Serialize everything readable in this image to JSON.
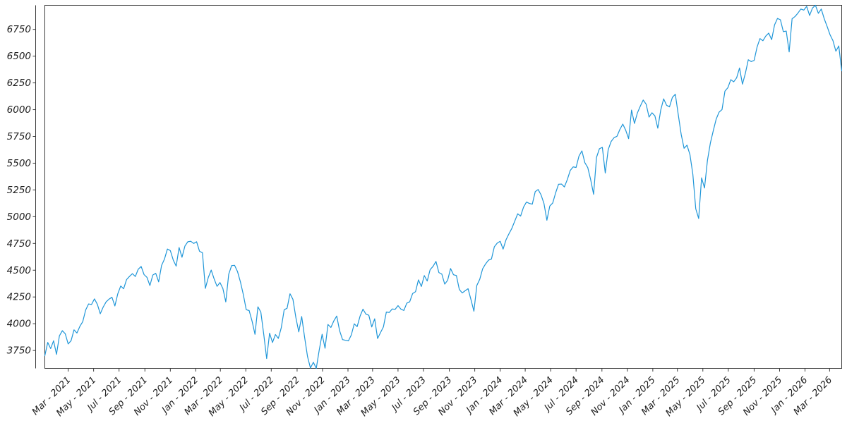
{
  "chart_data": {
    "type": "line",
    "title": "",
    "xlabel": "",
    "ylabel": "",
    "legend": "none",
    "grid": "off",
    "line_color": "#1f96d8",
    "axis_color": "#3b3b3b",
    "tick_label_color": "#1c1c1c",
    "x_start_date": "2021-01-04",
    "x_interval_days": 7,
    "ylim": [
      3583,
      6975
    ],
    "y_tick_labels": [
      3750,
      4000,
      4250,
      4500,
      4750,
      5000,
      5250,
      5500,
      5750,
      6000,
      6250,
      6500,
      6750
    ],
    "x_tick_labels": [
      "Mar - 2021",
      "May - 2021",
      "Jul - 2021",
      "Sep - 2021",
      "Nov - 2021",
      "Jan - 2022",
      "Mar - 2022",
      "May - 2022",
      "Jul - 2022",
      "Sep - 2022",
      "Nov - 2022",
      "Jan - 2023",
      "Mar - 2023",
      "May - 2023",
      "Jul - 2023",
      "Sep - 2023",
      "Nov - 2023",
      "Jan - 2024",
      "Mar - 2024",
      "May - 2024",
      "Jul - 2024",
      "Sep - 2024",
      "Nov - 2024",
      "Jan - 2025",
      "Mar - 2025",
      "May - 2025",
      "Jul - 2025",
      "Sep - 2025",
      "Nov - 2025",
      "Jan - 2026",
      "Mar - 2026"
    ],
    "values": [
      3701,
      3825,
      3768,
      3841,
      3714,
      3887,
      3935,
      3906,
      3811,
      3842,
      3943,
      3913,
      3975,
      4020,
      4129,
      4185,
      4180,
      4232,
      4181,
      4093,
      4156,
      4204,
      4230,
      4247,
      4166,
      4280,
      4352,
      4327,
      4412,
      4442,
      4468,
      4441,
      4509,
      4535,
      4459,
      4433,
      4357,
      4455,
      4471,
      4391,
      4545,
      4605,
      4698,
      4683,
      4595,
      4538,
      4712,
      4621,
      4726,
      4766,
      4770,
      4750,
      4766,
      4677,
      4663,
      4330,
      4432,
      4501,
      4419,
      4349,
      4385,
      4329,
      4204,
      4463,
      4543,
      4546,
      4488,
      4392,
      4272,
      4131,
      4123,
      4024,
      3901,
      4158,
      4109,
      3901,
      3675,
      3912,
      3825,
      3899,
      3863,
      3962,
      4130,
      4145,
      4280,
      4228,
      4058,
      3924,
      4067,
      3873,
      3693,
      3586,
      3640,
      3583,
      3753,
      3902,
      3771,
      3993,
      3965,
      4026,
      4072,
      3934,
      3852,
      3845,
      3840,
      3895,
      3999,
      3973,
      4071,
      4136,
      4090,
      4079,
      3970,
      4046,
      3862,
      3917,
      3971,
      4109,
      4105,
      4138,
      4134,
      4169,
      4136,
      4124,
      4192,
      4205,
      4282,
      4299,
      4410,
      4348,
      4450,
      4399,
      4505,
      4536,
      4582,
      4478,
      4464,
      4370,
      4406,
      4516,
      4458,
      4450,
      4320,
      4288,
      4308,
      4327,
      4224,
      4117,
      4358,
      4415,
      4514,
      4559,
      4594,
      4604,
      4719,
      4754,
      4770,
      4697,
      4784,
      4840,
      4891,
      4959,
      5027,
      5006,
      5089,
      5137,
      5124,
      5117,
      5234,
      5254,
      5204,
      5123,
      4967,
      5100,
      5128,
      5223,
      5303,
      5305,
      5278,
      5347,
      5432,
      5465,
      5460,
      5567,
      5615,
      5505,
      5459,
      5346,
      5209,
      5554,
      5635,
      5648,
      5408,
      5626,
      5702,
      5738,
      5751,
      5815,
      5865,
      5808,
      5729,
      5996,
      5871,
      5969,
      6032,
      6090,
      6051,
      5931,
      5971,
      5942,
      5827,
      5996,
      6101,
      6041,
      6026,
      6115,
      6144,
      5955,
      5770,
      5639,
      5668,
      5581,
      5397,
      5074,
      4983,
      5363,
      5268,
      5525,
      5687,
      5803,
      5912,
      5977,
      6001,
      6173,
      6205,
      6280,
      6260,
      6297,
      6389,
      6238,
      6340,
      6466,
      6449,
      6460,
      6584,
      6664,
      6644,
      6688,
      6715,
      6654,
      6792,
      6852,
      6840,
      6729,
      6734,
      6539,
      6849,
      6870,
      6902,
      6940,
      6930,
      6965,
      6880,
      6950,
      6975,
      6900,
      6940,
      6850,
      6778,
      6700,
      6645,
      6546,
      6595,
      6362
    ]
  }
}
